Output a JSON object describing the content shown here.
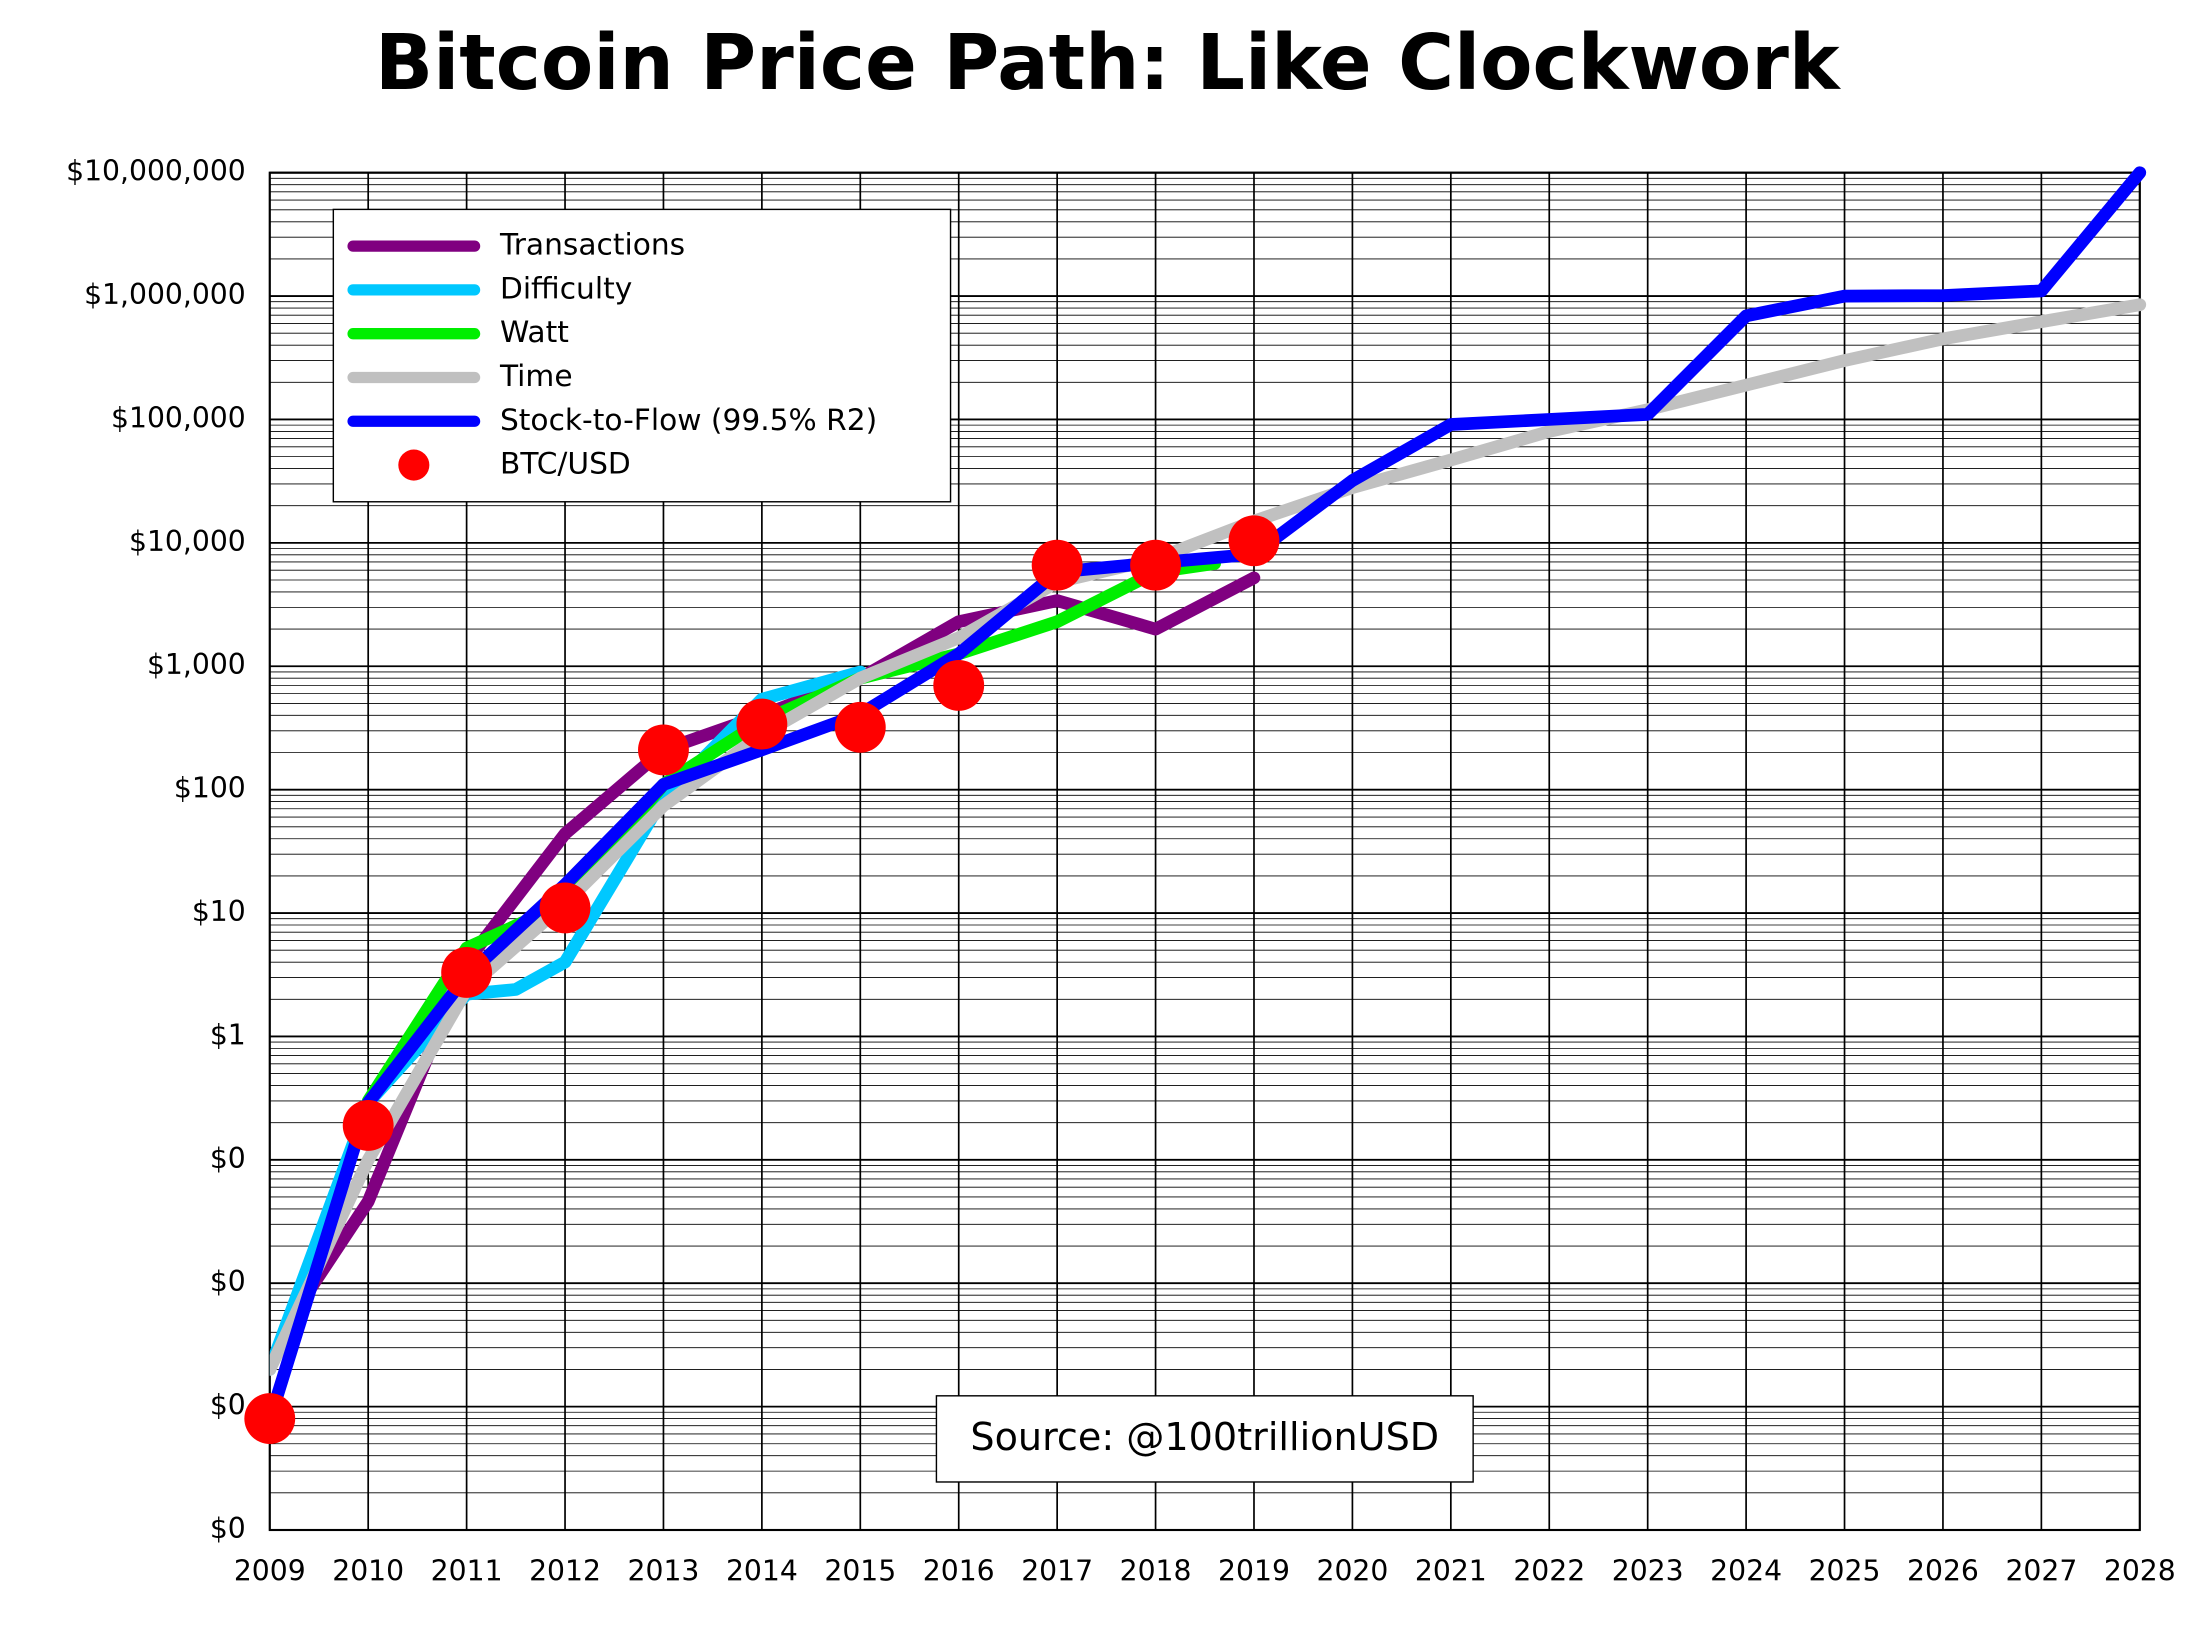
{
  "chart_data": {
    "type": "line",
    "title": "Bitcoin Price Path: Like Clockwork",
    "annotation": "Source: @100trillionUSD",
    "log_y": true,
    "grid": true,
    "legend": "upper left",
    "xlim": [
      2009,
      2028
    ],
    "xticks": [
      2009,
      2010,
      2011,
      2012,
      2013,
      2014,
      2015,
      2016,
      2017,
      2018,
      2019,
      2020,
      2021,
      2022,
      2023,
      2024,
      2025,
      2026,
      2027,
      2028
    ],
    "ylim": [
      0.0001,
      10000000
    ],
    "yticks": [
      {
        "value": 0.0001,
        "label": "$0"
      },
      {
        "value": 0.001,
        "label": "$0"
      },
      {
        "value": 0.01,
        "label": "$0"
      },
      {
        "value": 0.1,
        "label": "$0"
      },
      {
        "value": 1,
        "label": "$1"
      },
      {
        "value": 10,
        "label": "$10"
      },
      {
        "value": 100,
        "label": "$100"
      },
      {
        "value": 1000,
        "label": "$1,000"
      },
      {
        "value": 10000,
        "label": "$10,000"
      },
      {
        "value": 100000,
        "label": "$100,000"
      },
      {
        "value": 1000000,
        "label": "$1,000,000"
      },
      {
        "value": 10000000,
        "label": "$10,000,000"
      }
    ],
    "series": [
      {
        "name": "Transactions",
        "color": "#800080",
        "style": "line",
        "x": [
          2009.2,
          2010,
          2011,
          2012,
          2013,
          2014,
          2015,
          2016,
          2017,
          2018,
          2019
        ],
        "values": [
          0.005,
          0.046,
          4,
          44,
          210,
          400,
          800,
          2300,
          3400,
          2000,
          5200
        ]
      },
      {
        "name": "Difficulty",
        "color": "#00c8ff",
        "style": "line",
        "x": [
          2009,
          2010,
          2011,
          2011.5,
          2012,
          2013,
          2014,
          2015
        ],
        "values": [
          0.002,
          0.29,
          2.2,
          2.4,
          4,
          85,
          540,
          900
        ]
      },
      {
        "name": "Watt",
        "color": "#00ee00",
        "style": "line",
        "x": [
          2010,
          2011,
          2012,
          2013,
          2014,
          2015,
          2016,
          2017,
          2018,
          2018.6
        ],
        "values": [
          0.3,
          5.2,
          12,
          110,
          360,
          800,
          1260,
          2300,
          5800,
          6800
        ]
      },
      {
        "name": "Time",
        "color": "#c0c0c0",
        "style": "line",
        "x": [
          2009,
          2010,
          2011,
          2012,
          2013,
          2014,
          2015,
          2016,
          2017,
          2018,
          2019,
          2020,
          2021,
          2022,
          2023,
          2024,
          2025,
          2026,
          2027,
          2028
        ],
        "values": [
          0.002,
          0.1,
          2.4,
          12,
          74,
          280,
          800,
          1700,
          4800,
          7400,
          15000,
          28000,
          47000,
          80000,
          120000,
          190000,
          300000,
          450000,
          620000,
          850000
        ]
      },
      {
        "name": "Stock-to-Flow (99.5% R2)",
        "color": "#0000ff",
        "style": "line",
        "x": [
          2009,
          2010,
          2011,
          2012,
          2013,
          2014,
          2015,
          2016,
          2017,
          2018,
          2019,
          2020,
          2021,
          2022,
          2023,
          2024,
          2025,
          2026,
          2027,
          2028
        ],
        "values": [
          0.00078,
          0.29,
          3.1,
          17,
          110,
          210,
          410,
          1260,
          5800,
          6900,
          8100,
          32000,
          91000,
          100000,
          110000,
          690000,
          1000000,
          1010000,
          1100000,
          10000000
        ]
      },
      {
        "name": "BTC/USD",
        "color": "#ff0000",
        "style": "dots",
        "x": [
          2009,
          2010,
          2011,
          2012,
          2013,
          2014,
          2015,
          2016,
          2017,
          2018,
          2019
        ],
        "values": [
          0.0008,
          0.19,
          3.3,
          11,
          210,
          340,
          320,
          700,
          6600,
          6600,
          10400
        ]
      }
    ]
  }
}
